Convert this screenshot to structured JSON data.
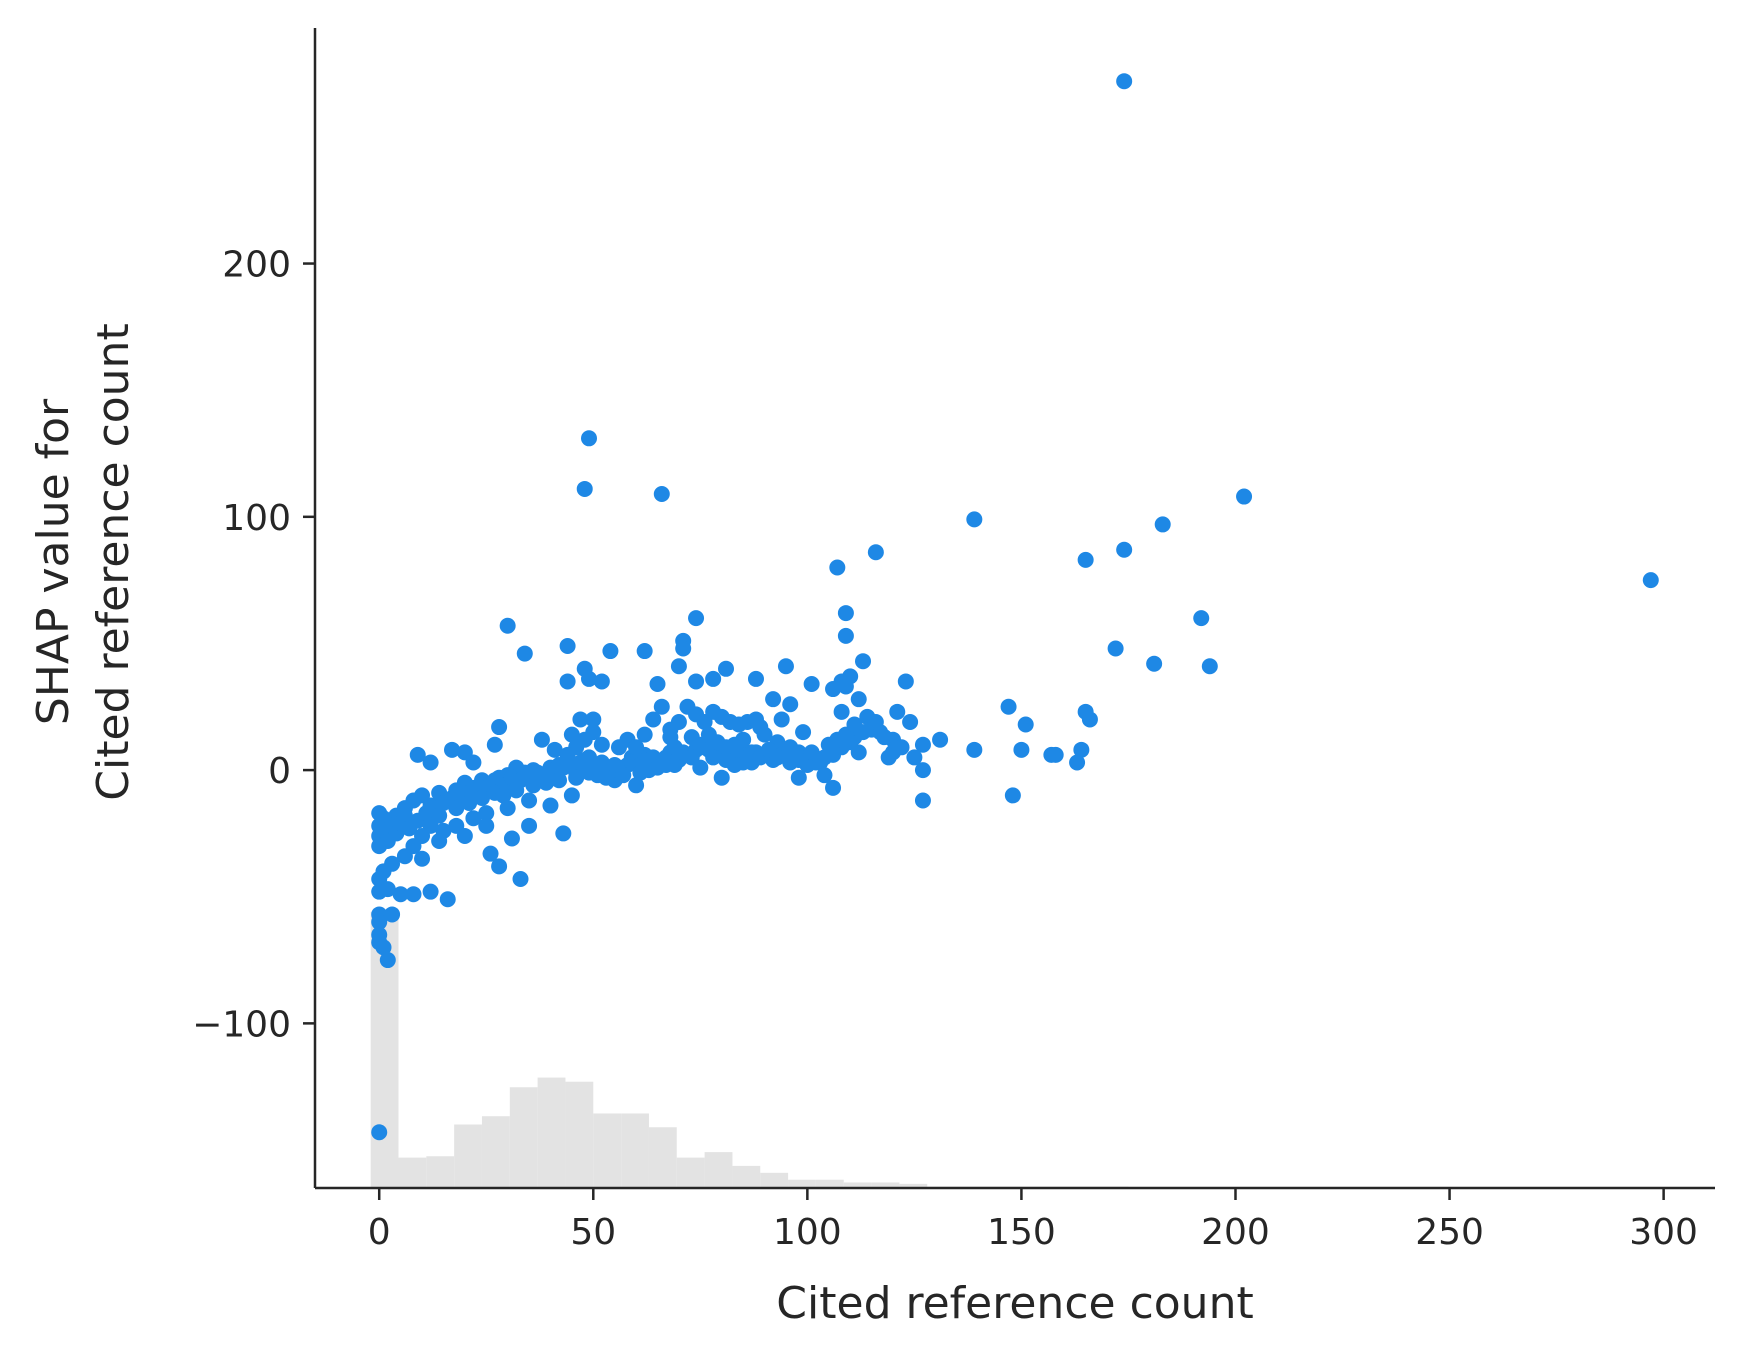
{
  "chart_data": {
    "type": "scatter",
    "title": "",
    "xlabel": "Cited reference count",
    "ylabel_line1": "SHAP value for",
    "ylabel_line2": "Cited reference count",
    "xlim": [
      -15,
      312
    ],
    "ylim": [
      -165,
      293
    ],
    "x_ticks": [
      0,
      50,
      100,
      150,
      200,
      250,
      300
    ],
    "x_tick_labels": [
      "0",
      "50",
      "100",
      "150",
      "200",
      "250",
      "300"
    ],
    "y_ticks": [
      -100,
      0,
      100,
      200
    ],
    "y_tick_labels": [
      "−100",
      "0",
      "100",
      "200"
    ],
    "grid": false,
    "point_color": "#1e88e5",
    "hist_color": "#e3e3e3",
    "histogram": {
      "note": "feature distribution shown as grey bars along bottom (relative heights)",
      "bins": [
        {
          "x0": -2,
          "x1": 4.5,
          "h": 1.0
        },
        {
          "x0": 4.5,
          "x1": 11,
          "h": 0.11
        },
        {
          "x0": 11,
          "x1": 17.5,
          "h": 0.115
        },
        {
          "x0": 17.5,
          "x1": 24,
          "h": 0.23
        },
        {
          "x0": 24,
          "x1": 30.5,
          "h": 0.26
        },
        {
          "x0": 30.5,
          "x1": 37,
          "h": 0.365
        },
        {
          "x0": 37,
          "x1": 43.5,
          "h": 0.4
        },
        {
          "x0": 43.5,
          "x1": 50,
          "h": 0.385
        },
        {
          "x0": 50,
          "x1": 56.5,
          "h": 0.27
        },
        {
          "x0": 56.5,
          "x1": 63,
          "h": 0.27
        },
        {
          "x0": 63,
          "x1": 69.5,
          "h": 0.22
        },
        {
          "x0": 69.5,
          "x1": 76,
          "h": 0.11
        },
        {
          "x0": 76,
          "x1": 82.5,
          "h": 0.13
        },
        {
          "x0": 82.5,
          "x1": 89,
          "h": 0.08
        },
        {
          "x0": 89,
          "x1": 95.5,
          "h": 0.055
        },
        {
          "x0": 95.5,
          "x1": 102,
          "h": 0.03
        },
        {
          "x0": 102,
          "x1": 108.5,
          "h": 0.03
        },
        {
          "x0": 108.5,
          "x1": 115,
          "h": 0.02
        },
        {
          "x0": 115,
          "x1": 121.5,
          "h": 0.02
        },
        {
          "x0": 121.5,
          "x1": 128,
          "h": 0.015
        },
        {
          "x0": 128,
          "x1": 175,
          "h": 0.005
        }
      ],
      "bottom": -165,
      "max_value": -56
    },
    "points": [
      [
        174,
        272
      ],
      [
        49,
        131
      ],
      [
        48,
        111
      ],
      [
        66,
        109
      ],
      [
        202,
        108
      ],
      [
        139,
        99
      ],
      [
        183,
        97
      ],
      [
        174,
        87
      ],
      [
        116,
        86
      ],
      [
        165,
        83
      ],
      [
        107,
        80
      ],
      [
        297,
        75
      ],
      [
        109,
        62
      ],
      [
        192,
        60
      ],
      [
        74,
        60
      ],
      [
        30,
        57
      ],
      [
        109,
        53
      ],
      [
        71,
        51
      ],
      [
        71,
        48
      ],
      [
        172,
        48
      ],
      [
        54,
        47
      ],
      [
        62,
        47
      ],
      [
        34,
        46
      ],
      [
        44,
        49
      ],
      [
        181,
        42
      ],
      [
        194,
        41
      ],
      [
        81,
        40
      ],
      [
        48,
        40
      ],
      [
        113,
        43
      ],
      [
        110,
        37
      ],
      [
        95,
        41
      ],
      [
        108,
        35
      ],
      [
        101,
        34
      ],
      [
        123,
        35
      ],
      [
        88,
        36
      ],
      [
        65,
        34
      ],
      [
        52,
        35
      ],
      [
        44,
        35
      ],
      [
        49,
        36
      ],
      [
        74,
        35
      ],
      [
        78,
        36
      ],
      [
        70,
        41
      ],
      [
        109,
        33
      ],
      [
        106,
        32
      ],
      [
        112,
        28
      ],
      [
        92,
        28
      ],
      [
        96,
        26
      ],
      [
        147,
        25
      ],
      [
        121,
        23
      ],
      [
        165,
        23
      ],
      [
        166,
        20
      ],
      [
        151,
        18
      ],
      [
        124,
        19
      ],
      [
        108,
        23
      ],
      [
        114,
        21
      ],
      [
        115,
        16
      ],
      [
        94,
        20
      ],
      [
        89,
        17
      ],
      [
        99,
        15
      ],
      [
        117,
        15
      ],
      [
        111,
        13
      ],
      [
        120,
        12
      ],
      [
        127,
        10
      ],
      [
        131,
        12
      ],
      [
        139,
        8
      ],
      [
        150,
        8
      ],
      [
        157,
        6
      ],
      [
        158,
        6
      ],
      [
        164,
        8
      ],
      [
        163,
        3
      ],
      [
        127,
        0
      ],
      [
        148,
        -10
      ],
      [
        127,
        -12
      ],
      [
        9,
        6
      ],
      [
        12,
        3
      ],
      [
        17,
        8
      ],
      [
        20,
        7
      ],
      [
        22,
        3
      ],
      [
        27,
        10
      ],
      [
        28,
        17
      ],
      [
        32,
        1
      ],
      [
        38,
        12
      ],
      [
        41,
        8
      ],
      [
        45,
        14
      ],
      [
        47,
        20
      ],
      [
        50,
        20
      ],
      [
        52,
        10
      ],
      [
        56,
        9
      ],
      [
        59,
        5
      ],
      [
        62,
        14
      ],
      [
        64,
        20
      ],
      [
        66,
        25
      ],
      [
        68,
        16
      ],
      [
        70,
        19
      ],
      [
        72,
        25
      ],
      [
        74,
        22
      ],
      [
        76,
        19
      ],
      [
        78,
        23
      ],
      [
        80,
        21
      ],
      [
        82,
        19
      ],
      [
        84,
        18
      ],
      [
        86,
        19
      ],
      [
        88,
        20
      ],
      [
        90,
        14
      ],
      [
        93,
        11
      ],
      [
        96,
        9
      ],
      [
        98,
        7
      ],
      [
        100,
        5
      ],
      [
        103,
        3
      ],
      [
        106,
        -7
      ],
      [
        104,
        -2
      ],
      [
        98,
        -3
      ],
      [
        85,
        3
      ],
      [
        80,
        -3
      ],
      [
        75,
        1
      ],
      [
        60,
        -6
      ],
      [
        55,
        -4
      ],
      [
        45,
        -10
      ],
      [
        40,
        -14
      ],
      [
        35,
        -12
      ],
      [
        30,
        -15
      ],
      [
        25,
        -17
      ],
      [
        22,
        -19
      ],
      [
        18,
        -22
      ],
      [
        15,
        -24
      ],
      [
        10,
        -26
      ],
      [
        8,
        -30
      ],
      [
        6,
        -34
      ],
      [
        3,
        -37
      ],
      [
        1,
        -40
      ],
      [
        0,
        -43
      ],
      [
        0,
        -48
      ],
      [
        0,
        -57
      ],
      [
        0,
        -60
      ],
      [
        0,
        -65
      ],
      [
        0,
        -68
      ],
      [
        1,
        -70
      ],
      [
        2,
        -75
      ],
      [
        3,
        -57
      ],
      [
        2,
        -47
      ],
      [
        5,
        -49
      ],
      [
        8,
        -49
      ],
      [
        10,
        -35
      ],
      [
        12,
        -48
      ],
      [
        16,
        -51
      ],
      [
        26,
        -33
      ],
      [
        28,
        -38
      ],
      [
        31,
        -27
      ],
      [
        33,
        -43
      ],
      [
        35,
        -22
      ],
      [
        43,
        -25
      ],
      [
        25,
        -22
      ],
      [
        20,
        -26
      ],
      [
        14,
        -28
      ],
      [
        0,
        -143
      ],
      [
        2,
        -20
      ],
      [
        4,
        -18
      ],
      [
        6,
        -15
      ],
      [
        8,
        -12
      ],
      [
        10,
        -10
      ],
      [
        12,
        -14
      ],
      [
        14,
        -9
      ],
      [
        16,
        -12
      ],
      [
        18,
        -8
      ],
      [
        20,
        -5
      ],
      [
        22,
        -7
      ],
      [
        24,
        -4
      ],
      [
        26,
        -6
      ],
      [
        28,
        -3
      ],
      [
        30,
        -2
      ],
      [
        32,
        -5
      ],
      [
        34,
        -1
      ],
      [
        36,
        0
      ],
      [
        38,
        -3
      ],
      [
        40,
        1
      ],
      [
        42,
        2
      ],
      [
        44,
        3
      ],
      [
        46,
        -1
      ],
      [
        48,
        4
      ],
      [
        50,
        2
      ],
      [
        52,
        3
      ],
      [
        54,
        1
      ],
      [
        56,
        0
      ],
      [
        58,
        2
      ],
      [
        60,
        4
      ],
      [
        62,
        6
      ],
      [
        64,
        5
      ],
      [
        66,
        3
      ],
      [
        68,
        7
      ],
      [
        70,
        4
      ],
      [
        72,
        6
      ],
      [
        74,
        8
      ],
      [
        76,
        9
      ],
      [
        78,
        5
      ],
      [
        80,
        7
      ],
      [
        82,
        6
      ],
      [
        84,
        8
      ],
      [
        86,
        5
      ],
      [
        88,
        7
      ],
      [
        90,
        6
      ],
      [
        92,
        4
      ],
      [
        94,
        6
      ],
      [
        96,
        3
      ],
      [
        98,
        4
      ],
      [
        100,
        2
      ],
      [
        102,
        3
      ],
      [
        104,
        5
      ],
      [
        106,
        6
      ],
      [
        108,
        9
      ],
      [
        110,
        11
      ],
      [
        112,
        7
      ],
      [
        0,
        -17
      ],
      [
        0,
        -22
      ],
      [
        0,
        -26
      ],
      [
        0,
        -30
      ],
      [
        1,
        -19
      ],
      [
        1,
        -24
      ],
      [
        2,
        -28
      ],
      [
        3,
        -22
      ],
      [
        4,
        -25
      ],
      [
        5,
        -21
      ],
      [
        6,
        -18
      ],
      [
        7,
        -23
      ],
      [
        9,
        -20
      ],
      [
        11,
        -17
      ],
      [
        13,
        -16
      ],
      [
        15,
        -13
      ],
      [
        17,
        -11
      ],
      [
        19,
        -10
      ],
      [
        21,
        -9
      ],
      [
        23,
        -8
      ],
      [
        25,
        -7
      ],
      [
        27,
        -4
      ],
      [
        29,
        -6
      ],
      [
        31,
        -3
      ],
      [
        33,
        -4
      ],
      [
        35,
        -2
      ],
      [
        37,
        -1
      ],
      [
        39,
        -2
      ],
      [
        41,
        0
      ],
      [
        43,
        1
      ],
      [
        45,
        2
      ],
      [
        47,
        3
      ],
      [
        49,
        5
      ],
      [
        51,
        -2
      ],
      [
        53,
        0
      ],
      [
        55,
        2
      ],
      [
        57,
        1
      ],
      [
        59,
        3
      ],
      [
        61,
        2
      ],
      [
        63,
        4
      ],
      [
        65,
        1
      ],
      [
        67,
        5
      ],
      [
        69,
        2
      ],
      [
        71,
        7
      ],
      [
        73,
        5
      ],
      [
        75,
        10
      ],
      [
        77,
        8
      ],
      [
        79,
        11
      ],
      [
        81,
        9
      ],
      [
        83,
        10
      ],
      [
        85,
        12
      ],
      [
        87,
        7
      ],
      [
        12,
        -22
      ],
      [
        14,
        -18
      ],
      [
        18,
        -15
      ],
      [
        21,
        -13
      ],
      [
        24,
        -11
      ],
      [
        27,
        -9
      ],
      [
        29,
        -10
      ],
      [
        32,
        -8
      ],
      [
        36,
        -6
      ],
      [
        39,
        -5
      ],
      [
        42,
        -4
      ],
      [
        46,
        -3
      ],
      [
        49,
        -1
      ],
      [
        53,
        -3
      ],
      [
        57,
        -2
      ],
      [
        61,
        -1
      ],
      [
        63,
        0
      ],
      [
        67,
        2
      ],
      [
        69,
        9
      ],
      [
        73,
        13
      ],
      [
        77,
        14
      ],
      [
        81,
        4
      ],
      [
        83,
        2
      ],
      [
        87,
        3
      ],
      [
        89,
        5
      ],
      [
        91,
        8
      ],
      [
        93,
        5
      ],
      [
        97,
        6
      ],
      [
        101,
        7
      ],
      [
        103,
        4
      ],
      [
        105,
        10
      ],
      [
        107,
        12
      ],
      [
        109,
        14
      ],
      [
        111,
        18
      ],
      [
        113,
        15
      ],
      [
        116,
        19
      ],
      [
        118,
        13
      ],
      [
        119,
        5
      ],
      [
        120,
        7
      ],
      [
        122,
        9
      ],
      [
        125,
        5
      ],
      [
        50,
        15
      ],
      [
        48,
        12
      ],
      [
        46,
        9
      ],
      [
        44,
        6
      ],
      [
        58,
        12
      ],
      [
        60,
        9
      ],
      [
        68,
        13
      ]
    ]
  }
}
